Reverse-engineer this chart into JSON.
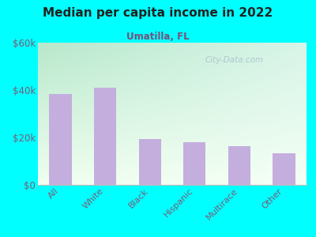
{
  "title": "Median per capita income in 2022",
  "subtitle": "Umatilla, FL",
  "categories": [
    "All",
    "White",
    "Black",
    "Hispanic",
    "Multirace",
    "Other"
  ],
  "values": [
    38500,
    41000,
    19500,
    18000,
    16500,
    13500
  ],
  "bar_color": "#c4aede",
  "ylim": [
    0,
    60000
  ],
  "yticks": [
    0,
    20000,
    40000,
    60000
  ],
  "ytick_labels": [
    "$0",
    "$20k",
    "$40k",
    "$60k"
  ],
  "background_color": "#00ffff",
  "title_color": "#222222",
  "subtitle_color": "#7a4f7a",
  "tick_color": "#7a5c7a",
  "watermark": "City-Data.com",
  "grad_top_left": "#b8e8cc",
  "grad_bottom_right": "#f8fff8"
}
